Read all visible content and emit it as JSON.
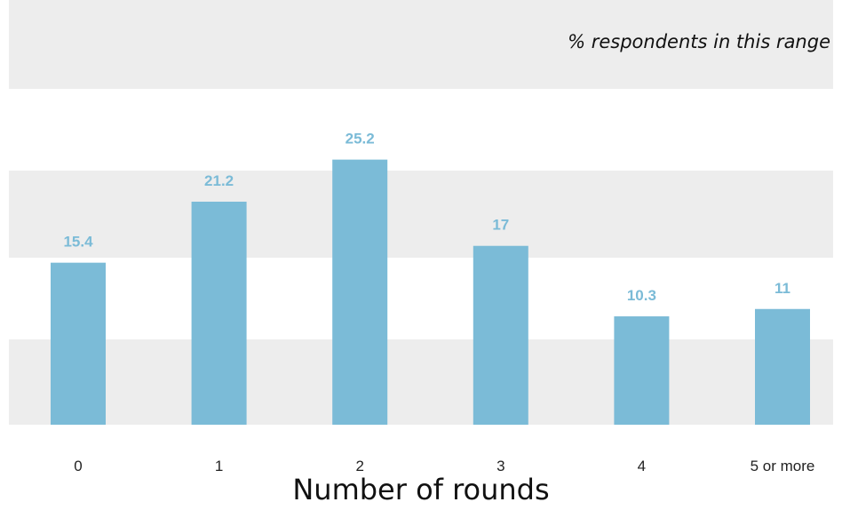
{
  "chart_data": {
    "type": "bar",
    "subtitle": "% respondents in this range",
    "xlabel": "Number of rounds",
    "ylabel": "",
    "categories": [
      "0",
      "1",
      "2",
      "3",
      "4",
      "5 or more"
    ],
    "values": [
      15.4,
      21.2,
      25.2,
      17,
      10.3,
      11
    ],
    "value_labels": [
      "15.4",
      "21.2",
      "25.2",
      "17",
      "10.3",
      "11"
    ],
    "ylim": [
      0,
      30
    ],
    "grid": "alternating horizontal bands",
    "legend": "none",
    "colors": {
      "bar": "#7bbbd7",
      "value_label": "#7bbbd7",
      "band": "#ededed",
      "background": "#ffffff"
    }
  }
}
